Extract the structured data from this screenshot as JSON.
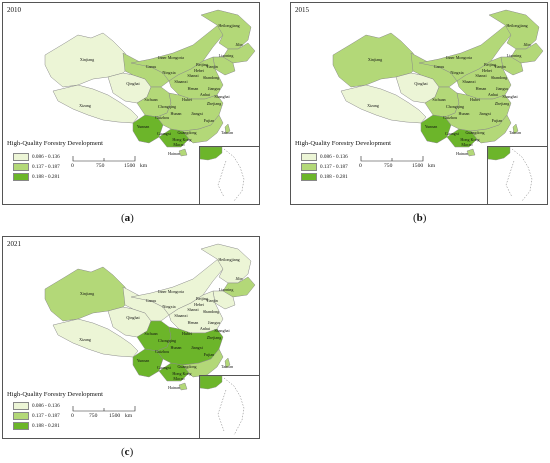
{
  "legend": {
    "title": "High-Quality Forestry Development",
    "classes": [
      {
        "label": "0.086 - 0.136",
        "color": "#ecf5d6"
      },
      {
        "label": "0.137 - 0.187",
        "color": "#b3d878"
      },
      {
        "label": "0.188 - 0.281",
        "color": "#6cb52a"
      }
    ]
  },
  "scale": {
    "ticks": [
      "0",
      "750",
      "1500"
    ],
    "unit": "km"
  },
  "region_labels": [
    "Heilongjiang",
    "Jilin",
    "Liaoning",
    "Inner Mongoria",
    "Beijing",
    "Tianjin",
    "Hebei",
    "Xinjiang",
    "Gansu",
    "Ningxia",
    "Shanxi",
    "Shandong",
    "Qinghai",
    "Shaanxi",
    "Henan",
    "Jiangsu",
    "Xizang",
    "Anhui",
    "Shanghai",
    "Sichuan",
    "Hubei",
    "Chongqing",
    "Zhejiang",
    "Hunan",
    "Jiangxi",
    "Guizhou",
    "Fujian",
    "Yunnan",
    "Guangxi",
    "Guangdong",
    "Taiwan",
    "Hong Kong",
    "Macao",
    "Hainan"
  ],
  "panels": [
    {
      "year": "2010",
      "caption": "a",
      "classes": {
        "Xinjiang": 0,
        "Xizang": 0,
        "Qinghai": 0,
        "Gansu": 1,
        "Inner Mongoria": 1,
        "Heilongjiang": 1,
        "Jilin": 1,
        "Liaoning": 1,
        "North": 1,
        "Sichuan": 1,
        "Yunnan": 2,
        "Guangxi": 2,
        "Central": 1,
        "South": 1
      }
    },
    {
      "year": "2015",
      "caption": "b",
      "classes": {
        "Xinjiang": 1,
        "Xizang": 0,
        "Qinghai": 0,
        "Gansu": 1,
        "Inner Mongoria": 1,
        "Heilongjiang": 1,
        "Jilin": 1,
        "Liaoning": 1,
        "North": 1,
        "Sichuan": 1,
        "Yunnan": 2,
        "Guangxi": 2,
        "Central": 1,
        "South": 1
      }
    },
    {
      "year": "2021",
      "caption": "c",
      "classes": {
        "Xinjiang": 1,
        "Xizang": 0,
        "Qinghai": 0,
        "Gansu": 0,
        "Inner Mongoria": 0,
        "Heilongjiang": 0,
        "Jilin": 1,
        "Liaoning": 0,
        "North": 0,
        "Sichuan": 2,
        "Yunnan": 2,
        "Guangxi": 2,
        "Central": 2,
        "South": 1
      }
    }
  ]
}
